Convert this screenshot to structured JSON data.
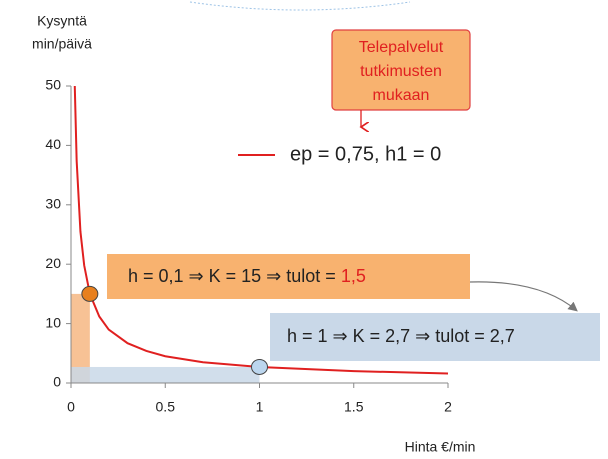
{
  "chart_data": {
    "type": "line",
    "y_label": [
      "Kysyntä",
      "min/päivä"
    ],
    "x_label": "Hinta €/min",
    "x": [
      0.02,
      0.03,
      0.05,
      0.07,
      0.1,
      0.15,
      0.2,
      0.3,
      0.4,
      0.5,
      0.7,
      1,
      1.5,
      2
    ],
    "series": [
      {
        "name": "ep = 0,75, h1 = 0",
        "color": "#e02020",
        "values": [
          50,
          37.4,
          25.5,
          19.8,
          15,
          11.2,
          9,
          6.7,
          5.4,
          4.5,
          3.5,
          2.7,
          2,
          1.6
        ]
      }
    ],
    "points": [
      {
        "x": 0.1,
        "y": 15,
        "color": "#e8801e",
        "area_color": "#f6b783"
      },
      {
        "x": 1,
        "y": 2.7,
        "color": "#bcd6ee",
        "area_color": "#c9d8e8"
      }
    ],
    "xlim": [
      0,
      2
    ],
    "ylim": [
      0,
      50
    ],
    "xticks": [
      0,
      0.5,
      1,
      1.5,
      2
    ],
    "yticks": [
      0,
      10,
      20,
      30,
      40,
      50
    ],
    "grid": false,
    "annotations": {
      "callout": [
        "Telepalvelut",
        "tutkimusten",
        "mukaan"
      ],
      "box1": {
        "text": "h = 0,1 ⇒ K = 15 ⇒ tulot =",
        "highlight": "1,5"
      },
      "box2": "h = 1 ⇒ K = 2,7 ⇒ tulot = 2,7"
    }
  }
}
